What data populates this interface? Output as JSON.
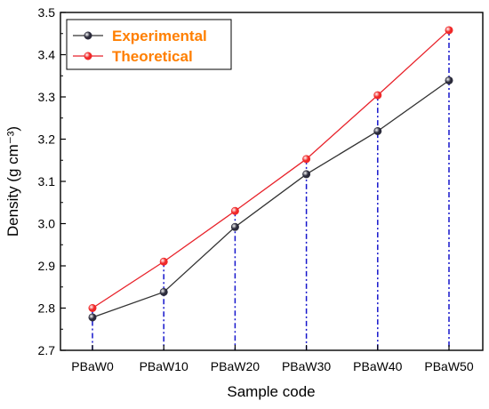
{
  "chart_data": {
    "type": "line",
    "categories": [
      "PBaW0",
      "PBaW10",
      "PBaW20",
      "PBaW30",
      "PBaW40",
      "PBaW50"
    ],
    "series": [
      {
        "name": "Experimental",
        "values": [
          2.778,
          2.838,
          2.992,
          3.117,
          3.219,
          3.339
        ],
        "line_color": "#333333",
        "marker_color": "#2B2B3B"
      },
      {
        "name": "Theoretical",
        "values": [
          2.8,
          2.91,
          3.03,
          3.153,
          3.304,
          3.458
        ],
        "line_color": "#E8222A",
        "marker_color": "#F02828"
      }
    ],
    "xlabel": "Sample code",
    "ylabel": "Density (g cm⁻³)",
    "ylim": [
      2.7,
      3.5
    ],
    "yticks": [
      "2.7",
      "2.8",
      "2.9",
      "3.0",
      "3.1",
      "3.2",
      "3.3",
      "3.4",
      "3.5"
    ],
    "grid": false,
    "legend_position": "top-left",
    "legend_text_color": "#FF7F00",
    "drop_line_color": "#1515CC",
    "drop_line_style": "dash-dot"
  }
}
